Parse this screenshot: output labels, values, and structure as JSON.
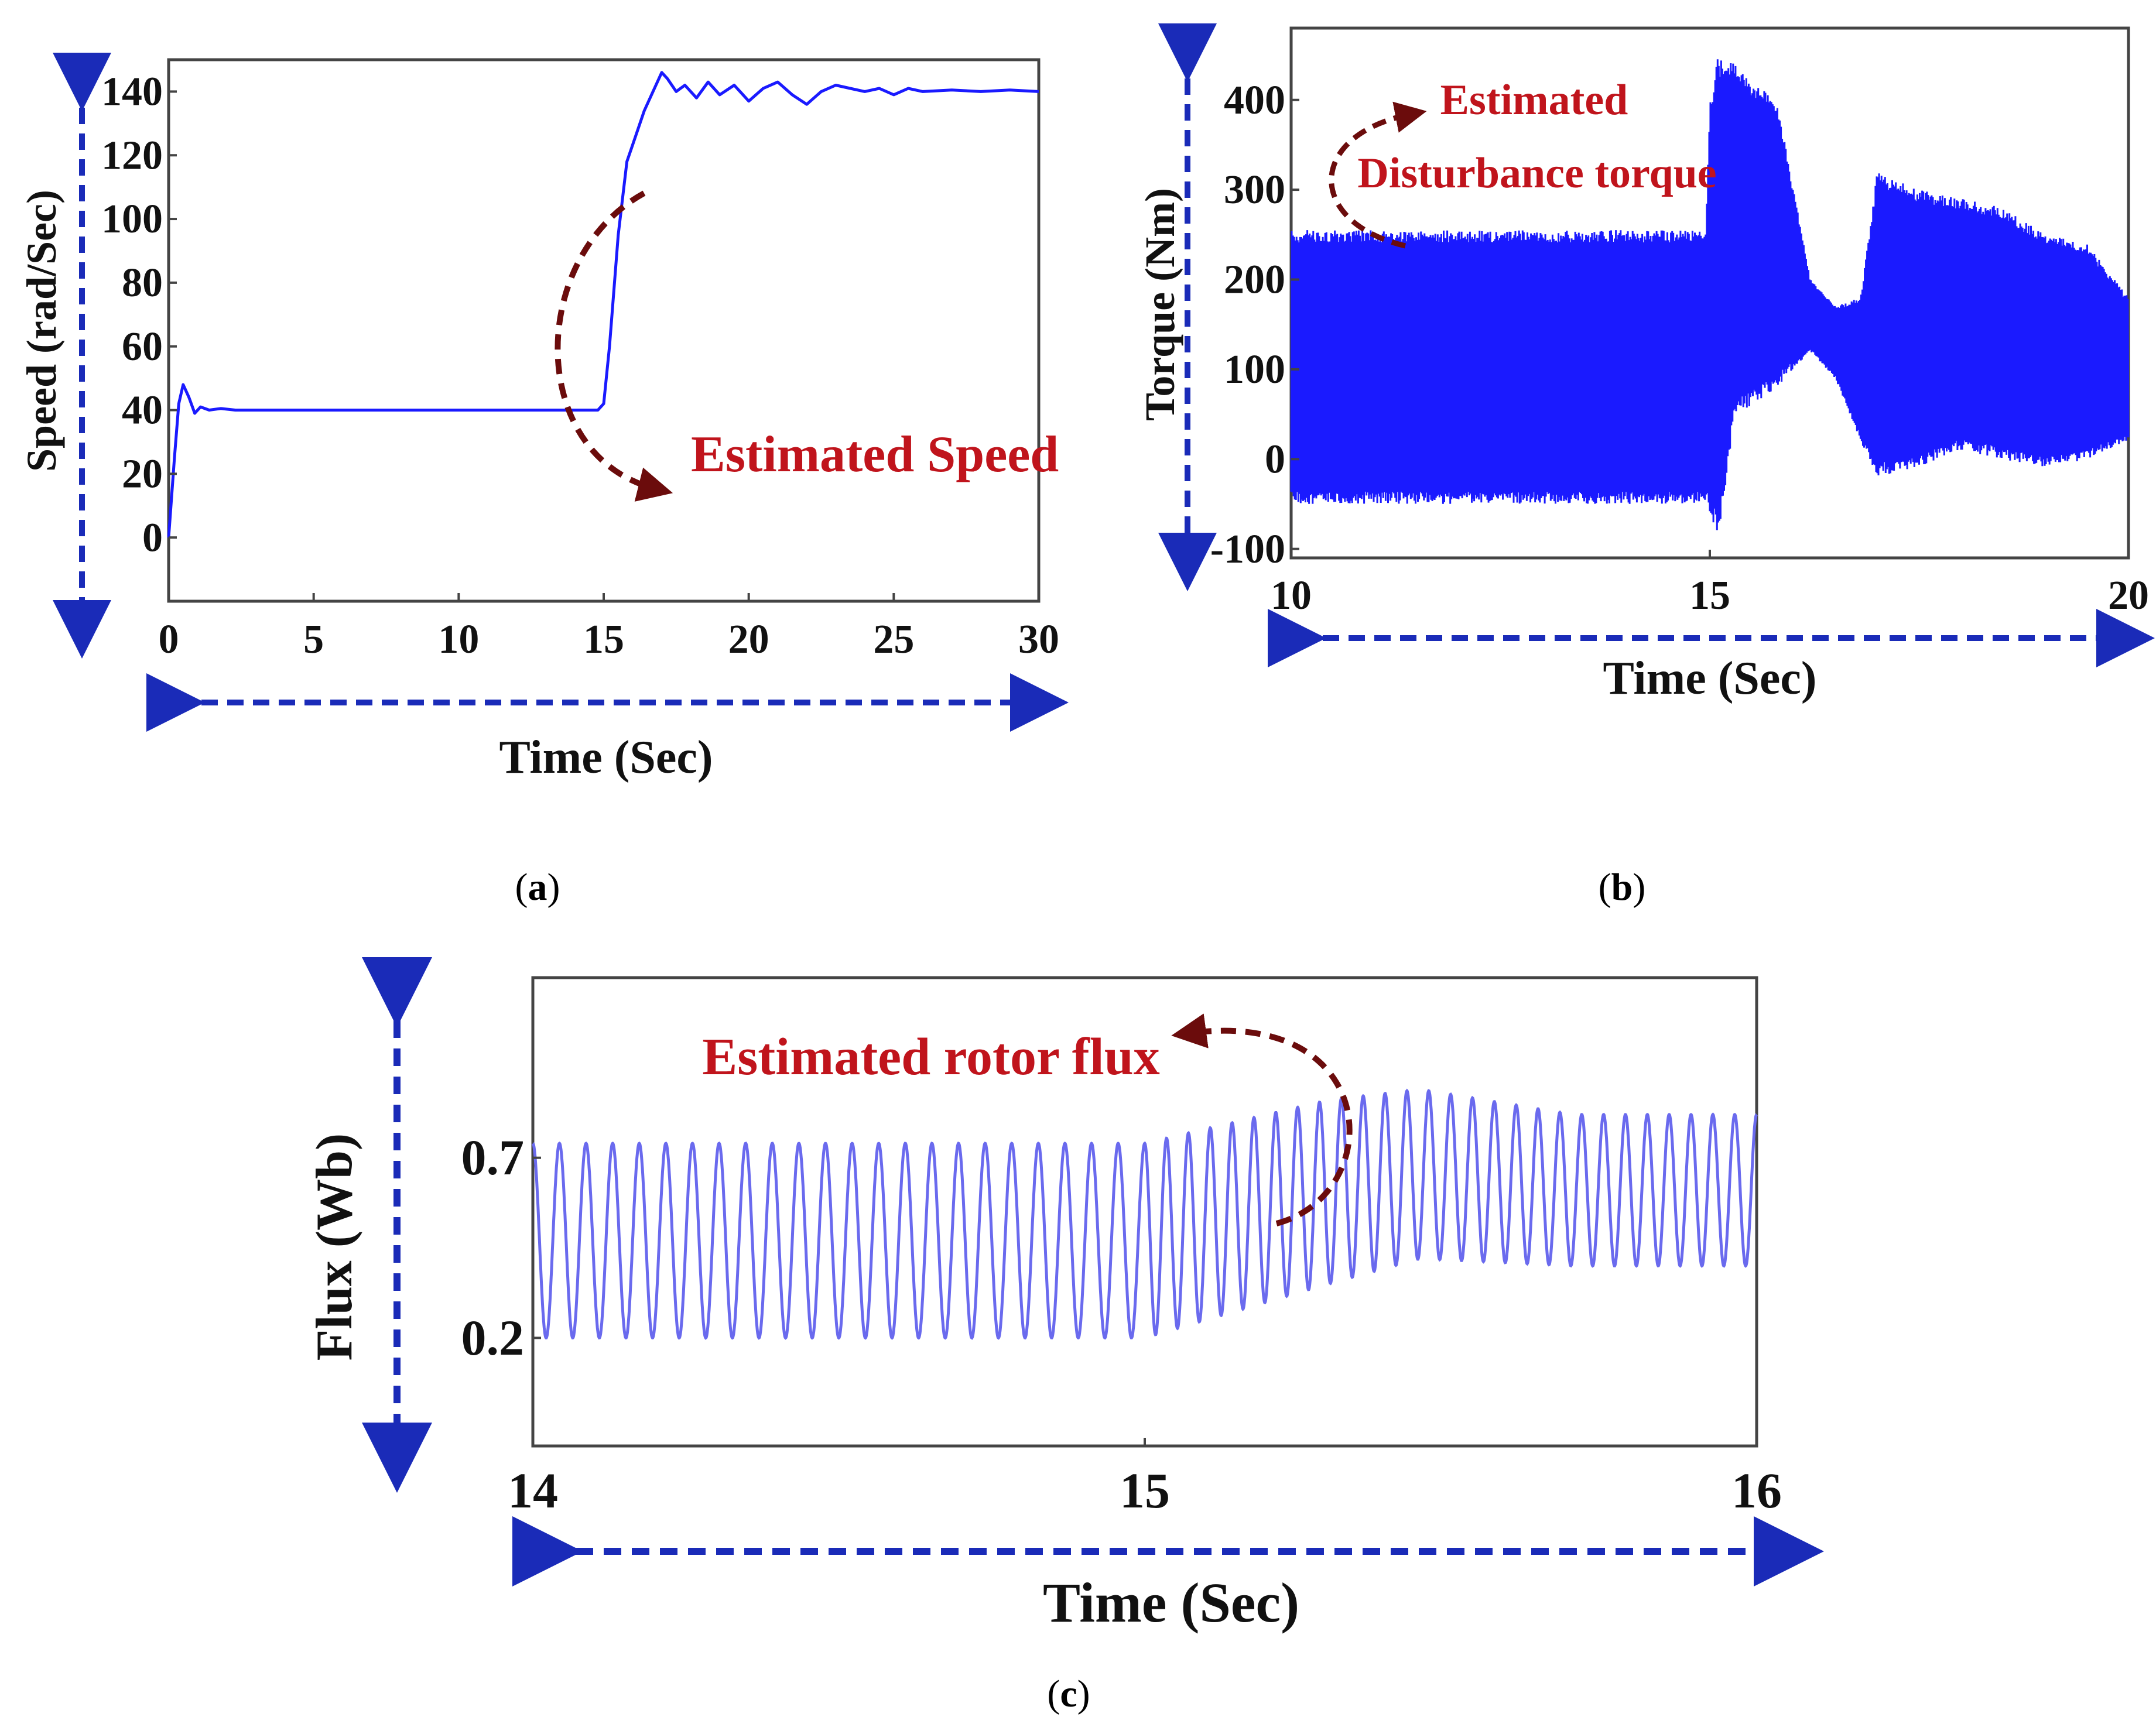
{
  "colors": {
    "trace": "#1a1aff",
    "trace_light": "#6a6aee",
    "axis_arrow": "#1a2bb8",
    "annotation": "#c0141c",
    "curved_arrow": "#6b0c0c"
  },
  "chart_data": [
    {
      "id": "a",
      "type": "line",
      "caption_letter": "a",
      "xlabel": "Time (Sec)",
      "ylabel": "Speed (rad/Sec)",
      "xlim": [
        0,
        30
      ],
      "ylim": [
        -20,
        150
      ],
      "x_ticks": [
        0,
        5,
        10,
        15,
        20,
        25,
        30
      ],
      "y_ticks": [
        0,
        20,
        40,
        60,
        80,
        100,
        120,
        140
      ],
      "annotation": "Estimated Speed",
      "series": [
        {
          "name": "Estimated Speed",
          "x": [
            0,
            0.2,
            0.35,
            0.5,
            0.7,
            0.9,
            1.1,
            1.4,
            1.8,
            2.3,
            3,
            5,
            8,
            10,
            12,
            14,
            14.8,
            15.0,
            15.2,
            15.5,
            15.8,
            16.1,
            16.4,
            16.7,
            17.0,
            17.2,
            17.5,
            17.8,
            18.2,
            18.6,
            19.0,
            19.5,
            20.0,
            20.5,
            21.0,
            21.5,
            22.0,
            22.5,
            23.0,
            23.5,
            24.0,
            24.5,
            25.0,
            25.5,
            26.0,
            27.0,
            28.0,
            29.0,
            30.0
          ],
          "values": [
            0,
            25,
            42,
            48,
            44,
            39,
            41,
            40,
            40.5,
            40,
            40,
            40,
            40,
            40,
            40,
            40,
            40,
            42,
            60,
            95,
            118,
            126,
            134,
            140,
            146,
            144,
            140,
            142,
            138,
            143,
            139,
            142,
            137,
            141,
            143,
            139,
            136,
            140,
            142,
            141,
            140,
            141,
            139,
            141,
            140,
            140.5,
            140,
            140.5,
            140
          ]
        }
      ]
    },
    {
      "id": "b",
      "type": "line",
      "caption_letter": "b",
      "xlabel": "Time (Sec)",
      "ylabel": "Torque (Nm)",
      "xlim": [
        10,
        20
      ],
      "ylim": [
        -110,
        480
      ],
      "x_ticks": [
        10,
        15,
        20
      ],
      "y_ticks": [
        -100,
        0,
        100,
        200,
        300,
        400
      ],
      "annotation": [
        "Estimated",
        "Disturbance torque"
      ],
      "series": [
        {
          "name": "Estimated Disturbance torque",
          "description": "high-frequency oscillation envelope",
          "x": [
            10,
            11,
            12,
            13,
            14,
            14.95,
            15.0,
            15.1,
            15.3,
            15.5,
            15.8,
            16.0,
            16.2,
            16.5,
            16.8,
            17.0,
            17.5,
            18.0,
            18.5,
            19.0,
            19.5,
            20.0
          ],
          "upper": [
            255,
            255,
            255,
            255,
            255,
            255,
            400,
            450,
            440,
            420,
            400,
            300,
            200,
            170,
            180,
            320,
            300,
            290,
            280,
            250,
            240,
            180
          ],
          "lower": [
            -50,
            -50,
            -50,
            -50,
            -50,
            -50,
            -60,
            -90,
            50,
            60,
            80,
            100,
            120,
            90,
            20,
            -20,
            -10,
            10,
            0,
            -10,
            0,
            20
          ]
        }
      ]
    },
    {
      "id": "c",
      "type": "line",
      "caption_letter": "c",
      "xlabel": "Time (Sec)",
      "ylabel": "Flux (Wb)",
      "xlim": [
        14,
        16
      ],
      "ylim": [
        -0.1,
        1.2
      ],
      "x_ticks": [
        14,
        15,
        16
      ],
      "y_ticks": [
        0.2,
        0.7
      ],
      "annotation": "Estimated rotor flux",
      "series": [
        {
          "name": "Estimated rotor flux",
          "description": "sinusoidal oscillation, ~23 cycles per second before t=15, ~28 after",
          "x": [
            14,
            15,
            15.3,
            15.45,
            15.7,
            16
          ],
          "upper": [
            0.74,
            0.74,
            0.86,
            0.89,
            0.82,
            0.82
          ],
          "lower": [
            0.2,
            0.2,
            0.35,
            0.42,
            0.4,
            0.4
          ]
        }
      ]
    }
  ]
}
